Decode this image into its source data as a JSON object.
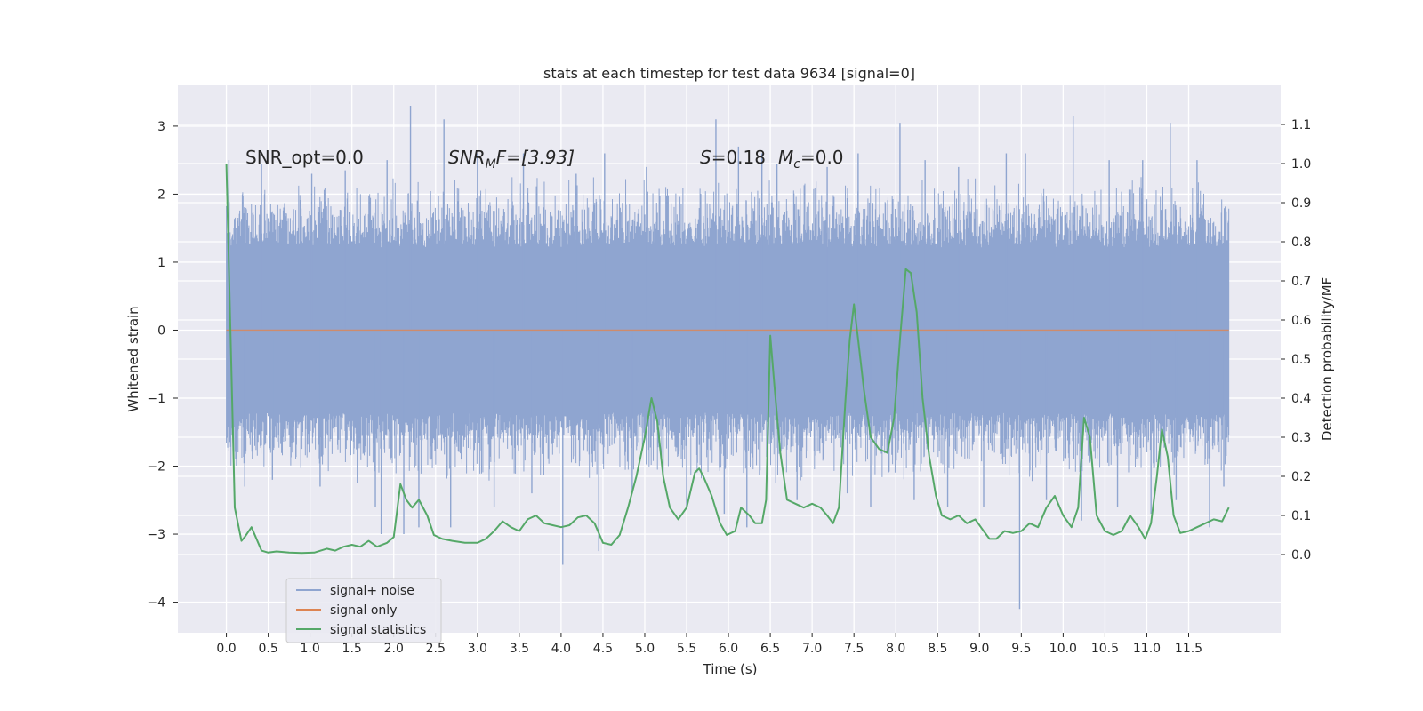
{
  "chart_data": {
    "type": "line",
    "title": "stats at each timestep for test data 9634 [signal=0]",
    "xlabel": "Time (s)",
    "ylabel_left": "Whitened strain",
    "ylabel_right": "Detection probability/MF",
    "xlim": [
      -0.58,
      12.6
    ],
    "ylim_left": [
      -4.45,
      3.6
    ],
    "ylim_right": [
      -0.2,
      1.2
    ],
    "x_ticks": [
      "0.0",
      "0.5",
      "1.0",
      "1.5",
      "2.0",
      "2.5",
      "3.0",
      "3.5",
      "4.0",
      "4.5",
      "5.0",
      "5.5",
      "6.0",
      "6.5",
      "7.0",
      "7.5",
      "8.0",
      "8.5",
      "9.0",
      "9.5",
      "10.0",
      "10.5",
      "11.0",
      "11.5"
    ],
    "y_ticks_left": [
      "3",
      "2",
      "1",
      "0",
      "−1",
      "−2",
      "−3",
      "−4"
    ],
    "y_ticks_right": [
      "1.1",
      "1.0",
      "0.9",
      "0.8",
      "0.7",
      "0.6",
      "0.5",
      "0.4",
      "0.3",
      "0.2",
      "0.1",
      "0.0"
    ],
    "grid": true,
    "legend_position": "lower-left",
    "annotations": {
      "snr_opt": "SNR_opt=0.0",
      "snr_mf_base": "SNR",
      "snr_mf_sub": "M",
      "snr_mf_rest": "F=[3.93]",
      "s_italic": "S",
      "s_value": "=0.18",
      "mc_italic": "M",
      "mc_sub": "c",
      "mc_value": "=0.0"
    },
    "series": [
      {
        "name": "signal+ noise",
        "color": "#8fa5d0",
        "axis": "left",
        "x_range": [
          0.0,
          11.98
        ],
        "typical_band": [
          -1.35,
          1.35
        ],
        "spikes": [
          [
            0.03,
            2.5
          ],
          [
            0.22,
            -2.3
          ],
          [
            0.42,
            2.45
          ],
          [
            0.55,
            -2.2
          ],
          [
            1.02,
            2.3
          ],
          [
            1.12,
            -2.3
          ],
          [
            1.42,
            2.35
          ],
          [
            1.78,
            -2.6
          ],
          [
            1.92,
            2.5
          ],
          [
            1.85,
            -3.0
          ],
          [
            2.12,
            -3.0
          ],
          [
            2.2,
            3.3
          ],
          [
            2.3,
            -2.9
          ],
          [
            2.6,
            3.1
          ],
          [
            2.68,
            -2.9
          ],
          [
            3.0,
            2.6
          ],
          [
            3.2,
            -2.6
          ],
          [
            3.55,
            2.6
          ],
          [
            3.65,
            -2.4
          ],
          [
            4.02,
            -3.45
          ],
          [
            4.18,
            2.3
          ],
          [
            4.45,
            -3.25
          ],
          [
            4.52,
            2.6
          ],
          [
            4.85,
            -2.4
          ],
          [
            5.02,
            2.4
          ],
          [
            5.5,
            -2.6
          ],
          [
            5.85,
            3.1
          ],
          [
            5.95,
            -2.7
          ],
          [
            6.12,
            2.7
          ],
          [
            6.22,
            -2.9
          ],
          [
            6.4,
            2.6
          ],
          [
            6.58,
            2.45
          ],
          [
            6.82,
            -2.5
          ],
          [
            7.18,
            2.4
          ],
          [
            7.42,
            -2.4
          ],
          [
            7.55,
            2.6
          ],
          [
            7.7,
            -2.6
          ],
          [
            8.05,
            3.05
          ],
          [
            8.22,
            -2.5
          ],
          [
            8.35,
            2.5
          ],
          [
            8.62,
            -2.6
          ],
          [
            8.75,
            2.4
          ],
          [
            9.05,
            -2.6
          ],
          [
            9.32,
            2.6
          ],
          [
            9.48,
            -4.1
          ],
          [
            9.55,
            2.6
          ],
          [
            9.8,
            -2.5
          ],
          [
            10.12,
            3.15
          ],
          [
            10.22,
            -2.8
          ],
          [
            10.55,
            2.5
          ],
          [
            10.65,
            -2.6
          ],
          [
            10.95,
            2.5
          ],
          [
            11.05,
            -2.7
          ],
          [
            11.28,
            3.05
          ],
          [
            11.35,
            -2.5
          ],
          [
            11.6,
            2.5
          ],
          [
            11.75,
            -2.9
          ],
          [
            11.92,
            -2.3
          ]
        ]
      },
      {
        "name": "signal only",
        "color": "#dd8452",
        "axis": "left",
        "x": [
          0.0,
          11.98
        ],
        "y": [
          0.0,
          0.0
        ]
      },
      {
        "name": "signal statistics",
        "color": "#55a868",
        "axis": "right",
        "x": [
          0.0,
          0.1,
          0.18,
          0.22,
          0.3,
          0.42,
          0.5,
          0.6,
          0.75,
          0.9,
          1.05,
          1.2,
          1.3,
          1.4,
          1.5,
          1.6,
          1.7,
          1.8,
          1.92,
          2.0,
          2.08,
          2.15,
          2.22,
          2.3,
          2.4,
          2.48,
          2.58,
          2.7,
          2.85,
          3.0,
          3.1,
          3.2,
          3.3,
          3.4,
          3.5,
          3.6,
          3.7,
          3.8,
          3.9,
          4.0,
          4.1,
          4.2,
          4.3,
          4.4,
          4.5,
          4.6,
          4.7,
          4.8,
          4.9,
          5.0,
          5.08,
          5.15,
          5.22,
          5.3,
          5.4,
          5.5,
          5.6,
          5.65,
          5.7,
          5.8,
          5.9,
          5.98,
          6.08,
          6.15,
          6.25,
          6.32,
          6.4,
          6.45,
          6.5,
          6.55,
          6.62,
          6.7,
          6.8,
          6.9,
          7.0,
          7.1,
          7.18,
          7.25,
          7.32,
          7.4,
          7.45,
          7.5,
          7.55,
          7.62,
          7.7,
          7.8,
          7.9,
          7.98,
          8.05,
          8.12,
          8.18,
          8.25,
          8.32,
          8.4,
          8.48,
          8.55,
          8.65,
          8.75,
          8.85,
          8.95,
          9.05,
          9.12,
          9.2,
          9.3,
          9.4,
          9.5,
          9.6,
          9.7,
          9.8,
          9.9,
          10.0,
          10.1,
          10.18,
          10.25,
          10.32,
          10.4,
          10.5,
          10.6,
          10.7,
          10.8,
          10.9,
          10.98,
          11.05,
          11.12,
          11.18,
          11.25,
          11.32,
          11.4,
          11.5,
          11.6,
          11.7,
          11.8,
          11.9,
          11.98
        ],
        "y": [
          1.0,
          0.12,
          0.035,
          0.045,
          0.07,
          0.01,
          0.005,
          0.008,
          0.005,
          0.004,
          0.005,
          0.015,
          0.01,
          0.02,
          0.025,
          0.02,
          0.035,
          0.02,
          0.03,
          0.045,
          0.18,
          0.14,
          0.12,
          0.14,
          0.1,
          0.05,
          0.04,
          0.035,
          0.03,
          0.03,
          0.04,
          0.06,
          0.085,
          0.07,
          0.06,
          0.09,
          0.1,
          0.08,
          0.075,
          0.07,
          0.075,
          0.095,
          0.1,
          0.08,
          0.03,
          0.025,
          0.05,
          0.12,
          0.2,
          0.3,
          0.4,
          0.34,
          0.2,
          0.12,
          0.09,
          0.12,
          0.21,
          0.22,
          0.2,
          0.15,
          0.08,
          0.05,
          0.06,
          0.12,
          0.1,
          0.08,
          0.08,
          0.14,
          0.56,
          0.43,
          0.26,
          0.14,
          0.13,
          0.12,
          0.13,
          0.12,
          0.1,
          0.08,
          0.12,
          0.4,
          0.55,
          0.64,
          0.55,
          0.42,
          0.3,
          0.27,
          0.26,
          0.35,
          0.55,
          0.73,
          0.72,
          0.62,
          0.4,
          0.25,
          0.15,
          0.1,
          0.09,
          0.1,
          0.08,
          0.09,
          0.06,
          0.04,
          0.04,
          0.06,
          0.055,
          0.06,
          0.08,
          0.07,
          0.12,
          0.15,
          0.1,
          0.07,
          0.12,
          0.35,
          0.3,
          0.1,
          0.06,
          0.05,
          0.06,
          0.1,
          0.07,
          0.04,
          0.08,
          0.2,
          0.32,
          0.25,
          0.1,
          0.055,
          0.06,
          0.07,
          0.08,
          0.09,
          0.085,
          0.12
        ]
      }
    ]
  }
}
